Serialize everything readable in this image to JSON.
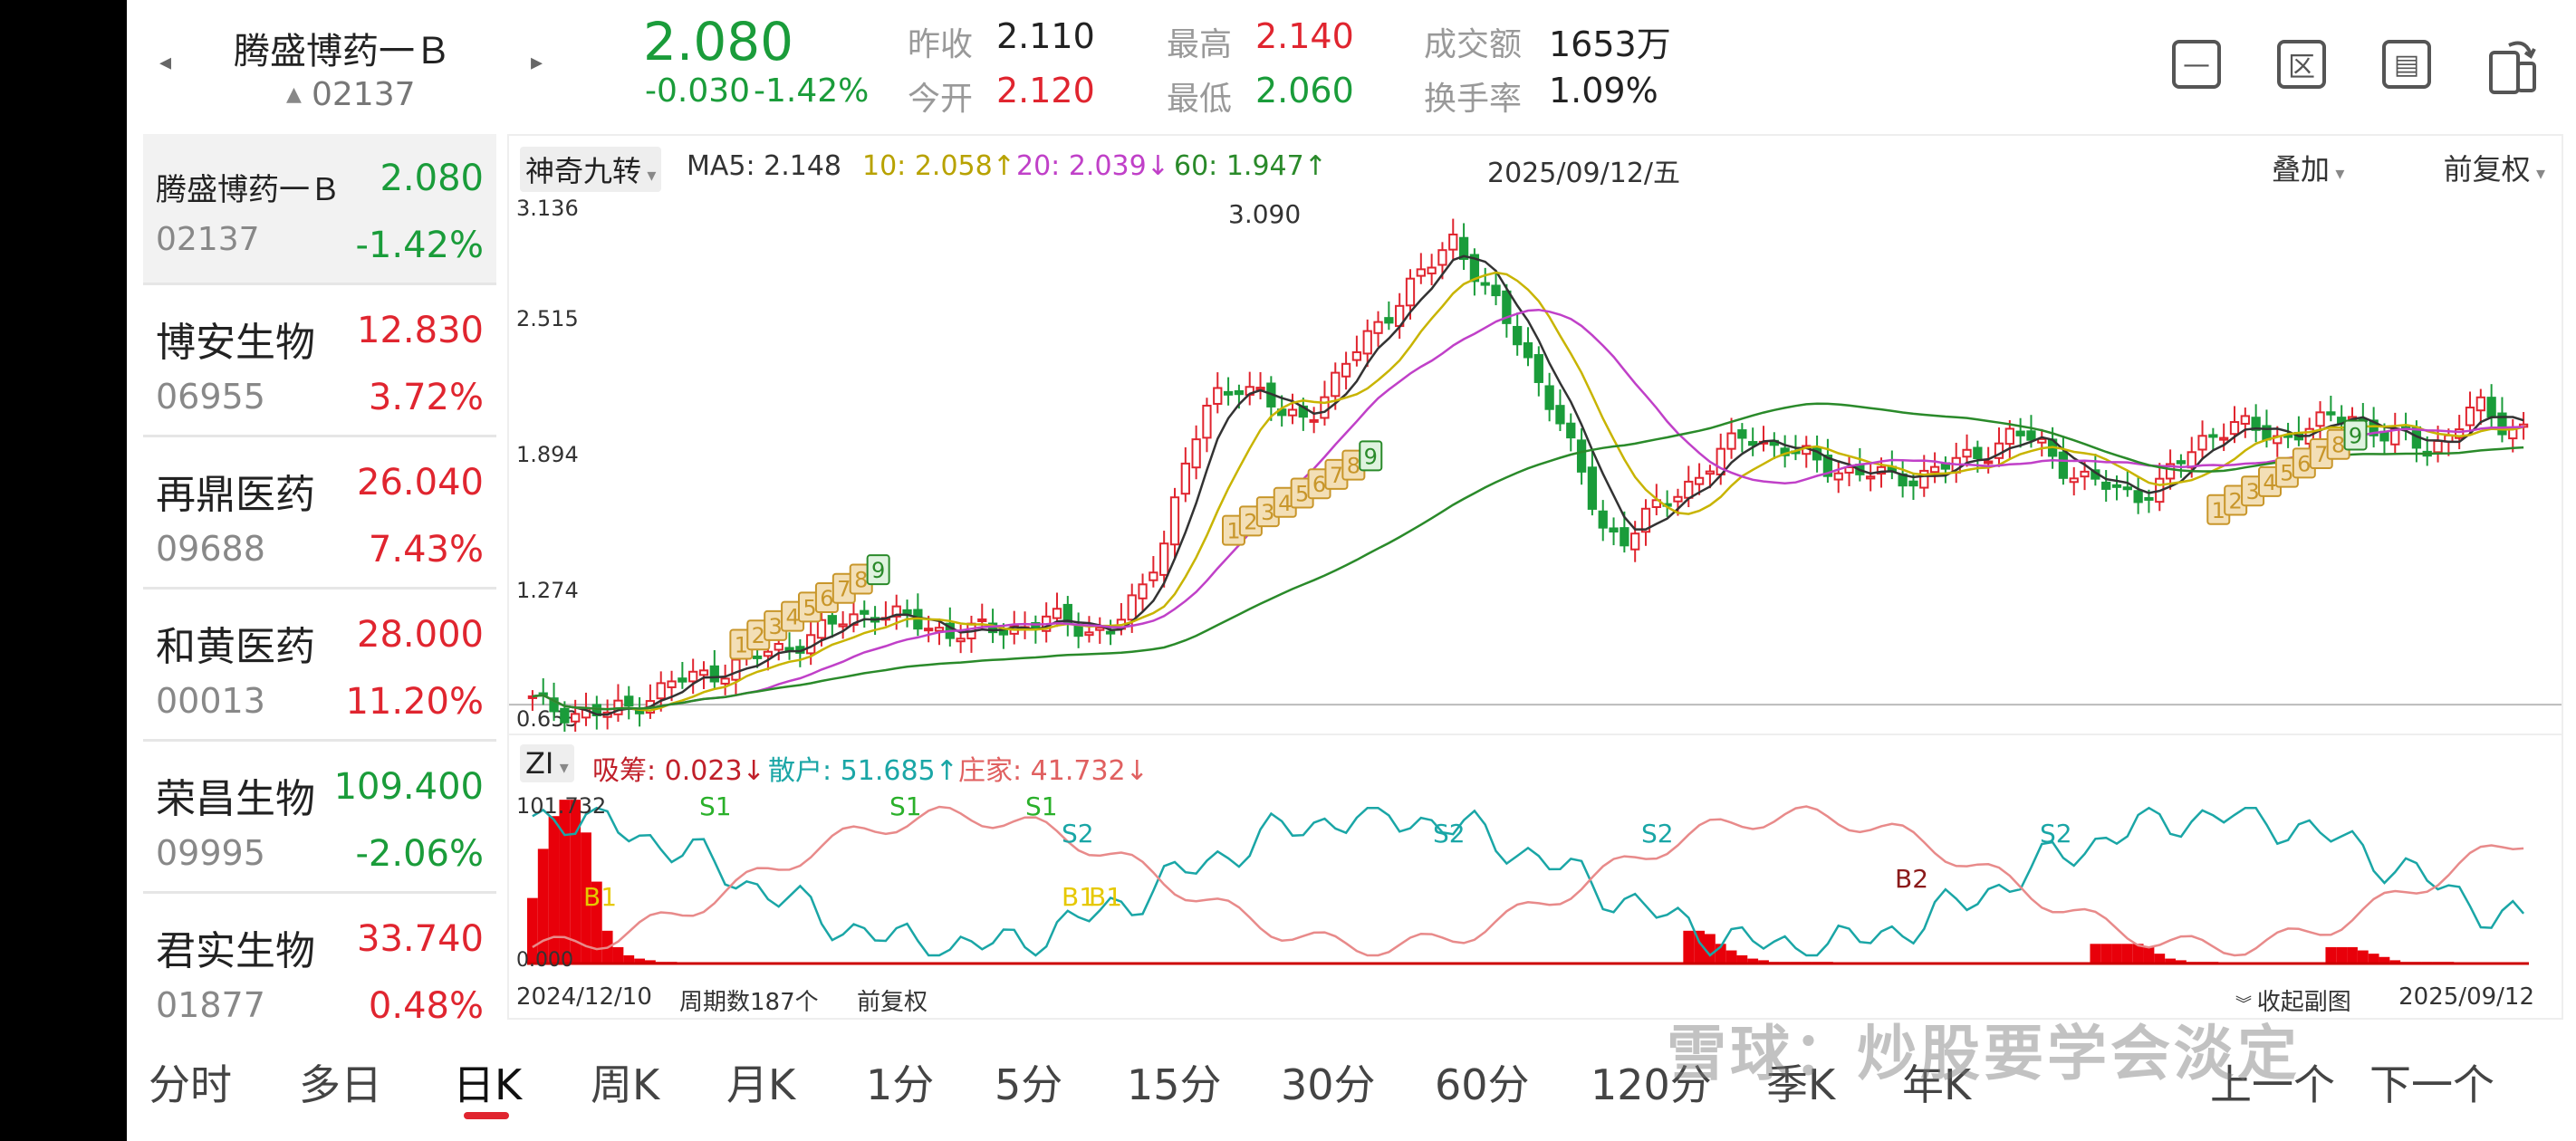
{
  "header": {
    "prev_arrow": "◂",
    "next_arrow": "▸",
    "stock_name": "腾盛博药一Ｂ",
    "stock_code": "02137",
    "code_marker": "▲",
    "price": "2.080",
    "change": "-0.030",
    "change_pct": "-1.42%",
    "quotes": {
      "prev_close_label": "昨收",
      "prev_close": "2.110",
      "open_label": "今开",
      "open": "2.120",
      "high_label": "最高",
      "high": "2.140",
      "low_label": "最低",
      "low": "2.060",
      "volume_label": "成交额",
      "volume": "1653万",
      "turnover_label": "换手率",
      "turnover": "1.09%"
    },
    "icons": [
      "minus-box-icon",
      "region-box-icon",
      "screen-box-icon",
      "rotate-phone-icon"
    ]
  },
  "sidebar": [
    {
      "name": "腾盛博药一Ｂ",
      "code": "02137",
      "price": "2.080",
      "chg": "-1.42%",
      "dir": "down",
      "active": true
    },
    {
      "name": "博安生物",
      "code": "06955",
      "price": "12.830",
      "chg": "3.72%",
      "dir": "up"
    },
    {
      "name": "再鼎医药",
      "code": "09688",
      "price": "26.040",
      "chg": "7.43%",
      "dir": "up"
    },
    {
      "name": "和黄医药",
      "code": "00013",
      "price": "28.000",
      "chg": "11.20%",
      "dir": "up"
    },
    {
      "name": "荣昌生物",
      "code": "09995",
      "price": "109.400",
      "chg": "-2.06%",
      "dir": "down"
    },
    {
      "name": "君实生物",
      "code": "01877",
      "price": "33.740",
      "chg": "0.48%",
      "dir": "up"
    }
  ],
  "indicator_bar": {
    "selector": "神奇九转",
    "ma5": "MA5: 2.148",
    "ma10": "10: 2.058↑",
    "ma20": "20: 2.039↓",
    "ma60": "60: 1.947↑",
    "date": "2025/09/12/五",
    "overlay": "叠加",
    "adjust": "前复权"
  },
  "colors": {
    "ma5": "#333333",
    "ma10": "#c8b400",
    "ma20": "#c040c8",
    "ma60": "#2a8a2a",
    "up": "#e0252f",
    "down": "#1a9c3a",
    "sanhu": "#1aa6a6",
    "zhuangjia": "#e88a8a"
  },
  "sub_indicator": {
    "selector": "ZI",
    "xichou": "吸筹: 0.023↓",
    "sanhu": "散户: 51.685↑",
    "zhuangjia": "庄家: 41.732↓",
    "y_top": "101.732",
    "y_bottom": "0.000"
  },
  "footer": {
    "start_date": "2024/12/10",
    "period_count": "周期数187个",
    "adjust": "前复权",
    "collapse": "收起副图",
    "end_date": "2025/09/12"
  },
  "chart_data": {
    "type": "candlestick",
    "y_ticks": [
      "3.136",
      "2.515",
      "1.894",
      "1.274",
      "0.653"
    ],
    "ylim": [
      0.653,
      3.136
    ],
    "max_label": "3.090",
    "close_trend": [
      0.75,
      0.72,
      0.7,
      0.69,
      0.73,
      0.8,
      0.85,
      0.88,
      0.92,
      0.96,
      1.0,
      1.05,
      1.1,
      1.15,
      1.2,
      1.16,
      1.12,
      1.1,
      1.09,
      1.1,
      1.12,
      1.15,
      1.13,
      1.1,
      1.12,
      1.25,
      1.55,
      1.95,
      2.2,
      2.3,
      2.25,
      2.1,
      2.15,
      2.3,
      2.45,
      2.6,
      2.75,
      2.85,
      3.0,
      2.8,
      2.6,
      2.4,
      2.2,
      1.9,
      1.6,
      1.55,
      1.65,
      1.75,
      1.85,
      1.95,
      2.05,
      2.0,
      1.95,
      1.9,
      1.88,
      1.85,
      1.83,
      1.85,
      1.88,
      1.92,
      1.98,
      2.05,
      2.0,
      1.9,
      1.82,
      1.78,
      1.76,
      1.8,
      1.92,
      2.05,
      2.1,
      2.05,
      2.03,
      2.08,
      2.1,
      2.15,
      2.05,
      2.02,
      1.98,
      2.05,
      2.18,
      2.1,
      2.08
    ],
    "nine_turn_labels": [
      "1",
      "2",
      "3",
      "4",
      "5",
      "6",
      "7",
      "8",
      "9"
    ],
    "sub_markers": [
      "S1",
      "S1",
      "S1",
      "S2",
      "S2",
      "S2",
      "S2",
      "B1",
      "B1",
      "B1",
      "B2"
    ]
  },
  "tabs": [
    "分时",
    "多日",
    "日K",
    "周K",
    "月K",
    "1分",
    "5分",
    "15分",
    "30分",
    "60分",
    "120分",
    "季K",
    "年K",
    "上一个",
    "下一个"
  ],
  "active_tab": "日K",
  "watermark": "雪球：炒股要学会淡定"
}
